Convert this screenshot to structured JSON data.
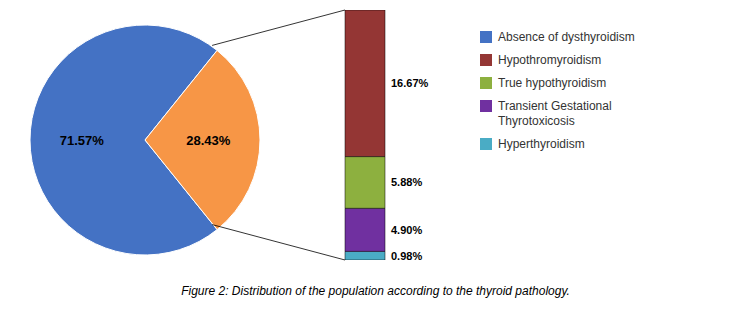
{
  "chart_data": [
    {
      "type": "pie",
      "title": "Figure 2: Distribution of the population according to the thyroid pathology.",
      "categories": [
        "Absence of dysthyroidism",
        null
      ],
      "values": [
        71.57,
        28.43
      ],
      "value_labels": [
        "71.57%",
        "28.43%"
      ],
      "colors": [
        "#4472C4",
        "#F79646"
      ],
      "data_labels": true,
      "legend": "upper right"
    },
    {
      "type": "bar",
      "stacked": true,
      "categories": [
        null
      ],
      "series": [
        {
          "name": "Hypothromyroidism",
          "color": "#943634",
          "values": [
            16.67
          ],
          "value_labels": [
            "16.67%"
          ]
        },
        {
          "name": "True hypothyroidism",
          "color": "#8DB03F",
          "values": [
            5.88
          ],
          "value_labels": [
            "5.88%"
          ]
        },
        {
          "name": "Transient Gestational\nThyrotoxicosis",
          "color": "#7030A0",
          "values": [
            4.9
          ],
          "value_labels": [
            "4.90%"
          ]
        },
        {
          "name": "Hyperthyroidism",
          "color": "#4AACC5",
          "values": [
            0.98
          ],
          "value_labels": [
            "0.98%"
          ]
        }
      ],
      "ylim": [
        0,
        28.43
      ],
      "tick_labels": false,
      "data_labels": true
    }
  ]
}
